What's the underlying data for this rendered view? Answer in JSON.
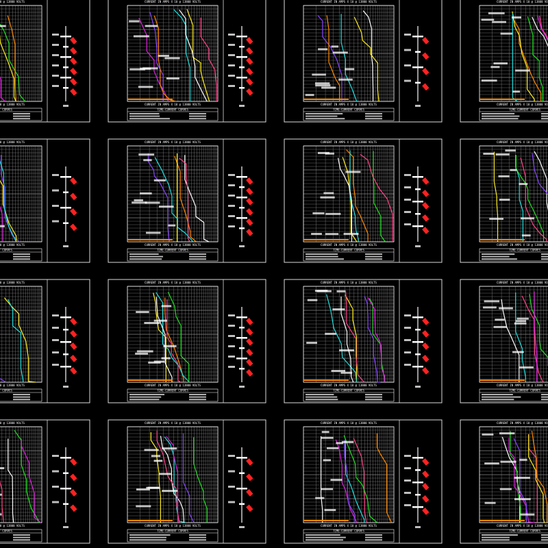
{
  "sheet": {
    "title": "TIME-CURRENT CURVES",
    "axis_label": "CURRENT IN AMPS X 10 @ 13800 VOLTS"
  }
}
